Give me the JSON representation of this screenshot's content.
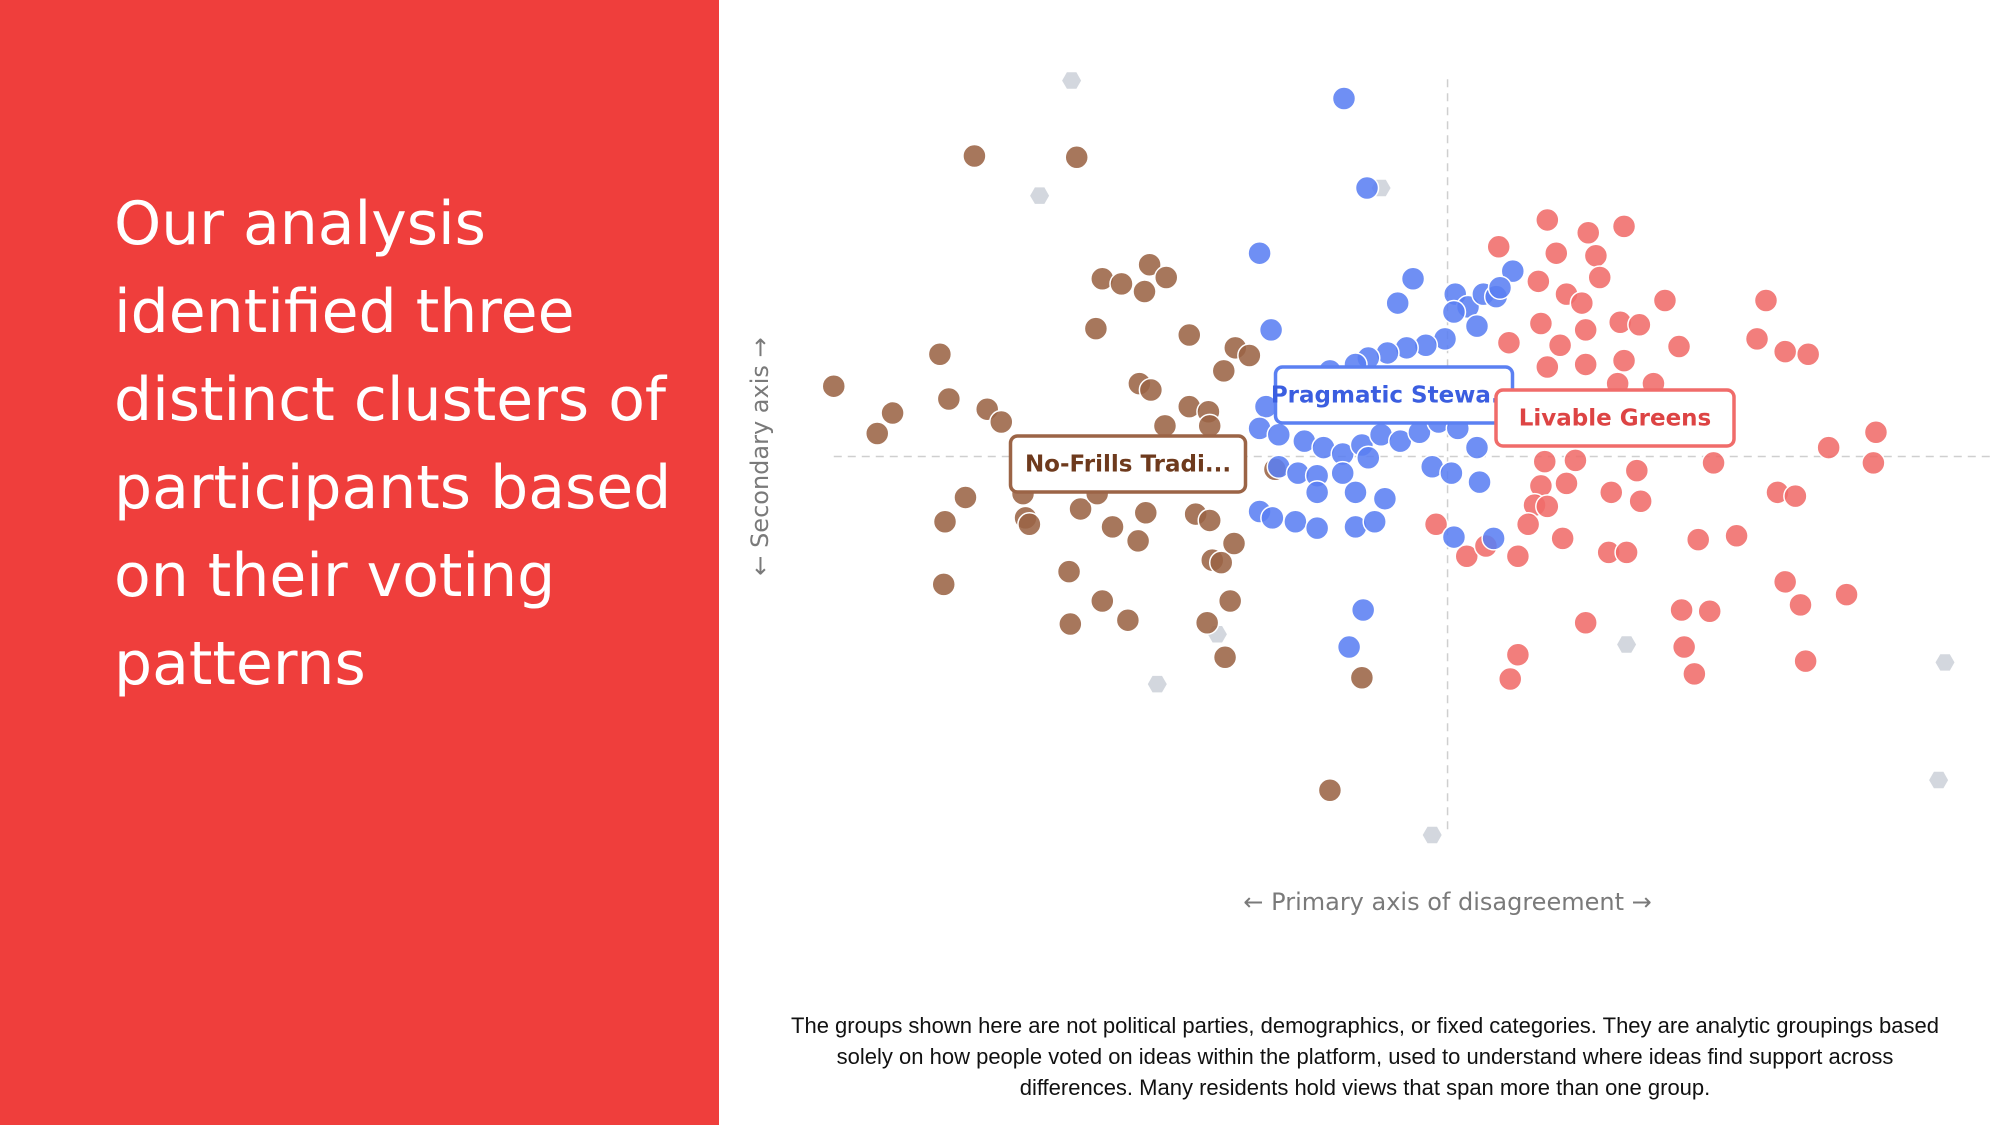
{
  "headline": "Our analysis identified three distinct clusters of participants based on their voting patterns",
  "footnote": "The groups shown here are not political parties, demographics, or fixed categories. They are analytic groupings based solely on how people voted on ideas within the platform, used to understand where ideas find support across differences. Many residents hold views that span more than one group.",
  "chart_data": {
    "type": "scatter",
    "xlabel": "← Primary axis of disagreement →",
    "ylabel": "← Secondary axis →",
    "xlim": [
      -50,
      42
    ],
    "ylim": [
      -31,
      31
    ],
    "series": [
      {
        "color": "#d3d7de",
        "x": [
          -29.4,
          -31.9,
          -5.2,
          -22.7,
          -18,
          -1.2,
          14,
          38.9,
          38.4
        ],
        "values": [
          29.4,
          20.4,
          21,
          -17.8,
          -13.9,
          -29.6,
          -14.7,
          -16.1,
          -25.3
        ]
      },
      {
        "name": "Livable Greens",
        "color": "#f06c6a",
        "x": [
          7.8,
          11,
          13.8,
          4,
          8.5,
          11.6,
          7.1,
          9.3,
          10.5,
          11.9,
          17,
          24.9,
          7.3,
          10.8,
          13.5,
          15,
          4.8,
          8.8,
          13.8,
          18.1,
          24.2,
          26.4,
          28.2,
          7.8,
          10.8,
          16.1,
          13.3,
          33.5,
          29.8,
          33.3,
          20.8,
          14.8,
          7.6,
          10,
          7.3,
          9.3,
          12.8,
          15.1,
          6.8,
          7.8,
          25.8,
          27.2,
          6.3,
          9,
          12.6,
          14,
          19.6,
          22.6,
          -0.9,
          1.5,
          3,
          5.5,
          26.4,
          27.6,
          31.2,
          18.3,
          20.5,
          10.8,
          18.5,
          28,
          5.5,
          19.3,
          4.9
        ],
        "values": [
          18.5,
          17.5,
          18,
          16.4,
          15.9,
          15.7,
          13.7,
          12.7,
          12,
          14,
          12.2,
          12.2,
          10.4,
          9.9,
          10.5,
          10.3,
          8.9,
          8.7,
          7.5,
          8.6,
          9.2,
          8.2,
          8,
          7,
          7.2,
          5.7,
          5.7,
          1.9,
          0.7,
          -0.5,
          -0.5,
          -1.1,
          -0.4,
          -0.3,
          -2.3,
          -2.1,
          -2.8,
          -3.5,
          -3.8,
          -3.9,
          -2.8,
          -3.1,
          -5.3,
          -6.4,
          -7.5,
          -7.5,
          -6.5,
          -6.2,
          -5.3,
          -7.8,
          -7,
          -7.8,
          -9.8,
          -11.6,
          -10.8,
          -12,
          -12.1,
          -13,
          -14.9,
          -16,
          -15.5,
          -17,
          -17.4
        ]
      },
      {
        "name": "No-Frills Tradi...",
        "color": "#9b6446",
        "x": [
          -37,
          -29,
          -27,
          -25.5,
          -23.3,
          -22,
          -23.7,
          -27.5,
          -20.2,
          -16.6,
          -15.5,
          -39.7,
          -48,
          -43.4,
          -44.6,
          -39,
          -36,
          -34.9,
          -24.1,
          -23.2,
          -17.5,
          -22.1,
          -20.2,
          -18.7,
          -18.6,
          -37.7,
          -39.3,
          -33,
          -32.7,
          -28.7,
          -26.2,
          -23.6,
          -27.4,
          -19.7,
          -18.6,
          -24.2,
          -18.4,
          -17.7,
          -16.7,
          -29.6,
          -39.4,
          -27,
          -25,
          -29.5,
          -18.8,
          -17,
          -17.4,
          -6.7,
          -9.2,
          -13.5,
          -33.2
        ],
        "values": [
          23.5,
          23.4,
          13.9,
          13.5,
          15,
          14,
          12.9,
          10,
          9.5,
          8.5,
          7.9,
          8,
          5.5,
          3.4,
          1.8,
          4.5,
          3.7,
          2.7,
          5.7,
          5.2,
          6.7,
          2.4,
          3.9,
          3.5,
          2.4,
          -3.2,
          -5.1,
          -4.8,
          -5.3,
          -4.1,
          -5.5,
          -4.4,
          -2.9,
          -4.5,
          -5,
          -6.6,
          -8.1,
          -8.3,
          -6.8,
          -9,
          -10,
          -11.3,
          -12.8,
          -13.1,
          -13,
          -11.3,
          -15.7,
          -17.3,
          -26.1,
          -1,
          -2.9
        ]
      },
      {
        "name": "Pragmatic Stewa...",
        "color": "#5b80f2",
        "x": [
          -8.1,
          -6.3,
          -14.7,
          -2.7,
          -13.8,
          -3.9,
          0.6,
          1.6,
          2.8,
          3.8,
          5.1,
          4.1,
          0.5,
          2.3,
          -0.2,
          -1.7,
          -3.2,
          -4.7,
          -6.2,
          -7.2,
          -9.2,
          -12.2,
          -14.2,
          -14.7,
          -13.2,
          -11.2,
          -9.7,
          -8.2,
          -6.7,
          -5.2,
          -3.7,
          -2.2,
          -0.7,
          0.8,
          2.3,
          -13.2,
          -11.7,
          -10.2,
          -8.2,
          -6.2,
          -1.2,
          0.3,
          2.5,
          -10.2,
          -7.2,
          -4.9,
          -14.7,
          -13.7,
          -11.9,
          -10.2,
          -7.2,
          -5.7,
          0.5,
          3.6,
          -6.6,
          -7.7,
          -11.2,
          -7.2,
          -3.2,
          0.8
        ],
        "values": [
          28,
          21,
          15.9,
          13.9,
          9.9,
          12,
          12.7,
          11.7,
          12.7,
          12.5,
          14.5,
          13.2,
          11.3,
          10.2,
          9.2,
          8.7,
          8.5,
          8.1,
          7.7,
          7.2,
          6.7,
          5.7,
          3.9,
          2.2,
          1.7,
          1.2,
          0.7,
          0.2,
          0.9,
          1.7,
          1.2,
          1.9,
          2.7,
          2.2,
          0.7,
          -0.8,
          -1.3,
          -1.5,
          -1.3,
          -0.1,
          -0.8,
          -1.3,
          -2,
          -2.8,
          -2.8,
          -3.3,
          -4.3,
          -4.8,
          -5.1,
          -5.6,
          -5.5,
          -5.1,
          -6.3,
          -6.4,
          -12,
          -14.9,
          3.7,
          4.7,
          5.7,
          5.7
        ]
      }
    ]
  }
}
